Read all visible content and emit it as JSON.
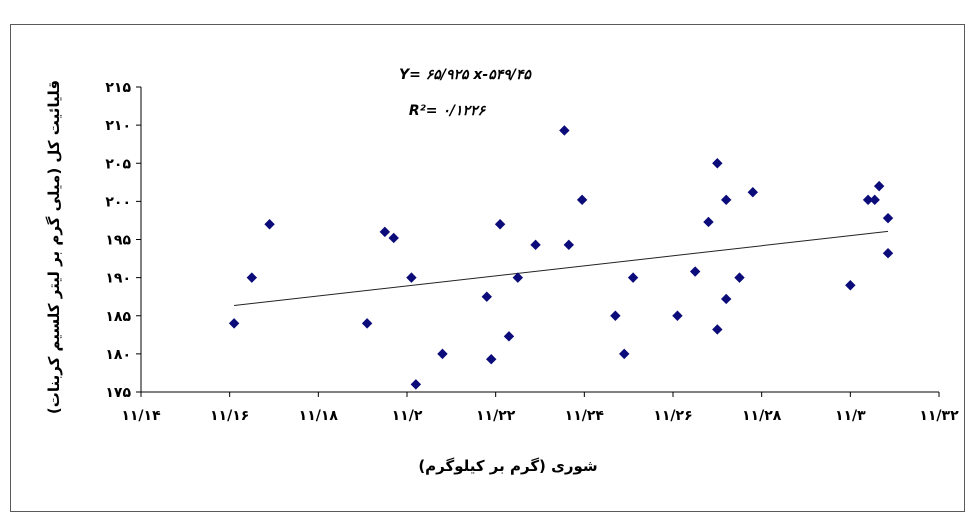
{
  "chart_data": {
    "type": "scatter",
    "xlabel": "شوری (گرم بر کیلوگرم)",
    "ylabel": "قلیائیت کل (میلی گرم بر لیتر کلسیم کربنات)",
    "xlim": [
      11.14,
      11.32
    ],
    "ylim": [
      175,
      215
    ],
    "xticks": [
      11.14,
      11.16,
      11.18,
      11.2,
      11.22,
      11.24,
      11.26,
      11.28,
      11.3,
      11.32
    ],
    "yticks": [
      175,
      180,
      185,
      190,
      195,
      200,
      205,
      210,
      215
    ],
    "xtick_labels": [
      "۱۱/۱۴",
      "۱۱/۱۶",
      "۱۱/۱۸",
      "۱۱/۲",
      "۱۱/۲۲",
      "۱۱/۲۴",
      "۱۱/۲۶",
      "۱۱/۲۸",
      "۱۱/۳",
      "۱۱/۳۲"
    ],
    "ytick_labels": [
      "۱۷۵",
      "۱۸۰",
      "۱۸۵",
      "۱۹۰",
      "۱۹۵",
      "۲۰۰",
      "۲۰۵",
      "۲۱۰",
      "۲۱۵"
    ],
    "equation": "Y= ۶۵/۹۲۵ x-۵۴۹/۴۵",
    "r_squared": "R²= ۰/۱۲۲۶",
    "marker_color": "#0b0b7a",
    "trendline": {
      "slope": 65.925,
      "intercept": -549.45,
      "x_range": [
        11.161,
        11.3085
      ]
    },
    "points": [
      {
        "x": 11.161,
        "y": 184
      },
      {
        "x": 11.165,
        "y": 190
      },
      {
        "x": 11.169,
        "y": 197
      },
      {
        "x": 11.191,
        "y": 184
      },
      {
        "x": 11.195,
        "y": 196
      },
      {
        "x": 11.197,
        "y": 195.2
      },
      {
        "x": 11.201,
        "y": 190
      },
      {
        "x": 11.202,
        "y": 176
      },
      {
        "x": 11.208,
        "y": 180
      },
      {
        "x": 11.218,
        "y": 187.5
      },
      {
        "x": 11.219,
        "y": 179.3
      },
      {
        "x": 11.221,
        "y": 197
      },
      {
        "x": 11.223,
        "y": 182.3
      },
      {
        "x": 11.225,
        "y": 190
      },
      {
        "x": 11.229,
        "y": 194.3
      },
      {
        "x": 11.2355,
        "y": 209.3
      },
      {
        "x": 11.2365,
        "y": 194.3
      },
      {
        "x": 11.2395,
        "y": 200.2
      },
      {
        "x": 11.247,
        "y": 185
      },
      {
        "x": 11.249,
        "y": 180
      },
      {
        "x": 11.251,
        "y": 190
      },
      {
        "x": 11.261,
        "y": 185
      },
      {
        "x": 11.265,
        "y": 190.8
      },
      {
        "x": 11.268,
        "y": 197.3
      },
      {
        "x": 11.27,
        "y": 205
      },
      {
        "x": 11.27,
        "y": 183.2
      },
      {
        "x": 11.272,
        "y": 200.2
      },
      {
        "x": 11.272,
        "y": 187.2
      },
      {
        "x": 11.275,
        "y": 190
      },
      {
        "x": 11.278,
        "y": 201.2
      },
      {
        "x": 11.3,
        "y": 189
      },
      {
        "x": 11.304,
        "y": 200.2
      },
      {
        "x": 11.3055,
        "y": 200.2
      },
      {
        "x": 11.3065,
        "y": 202
      },
      {
        "x": 11.3085,
        "y": 197.8
      },
      {
        "x": 11.3085,
        "y": 193.2
      }
    ]
  }
}
